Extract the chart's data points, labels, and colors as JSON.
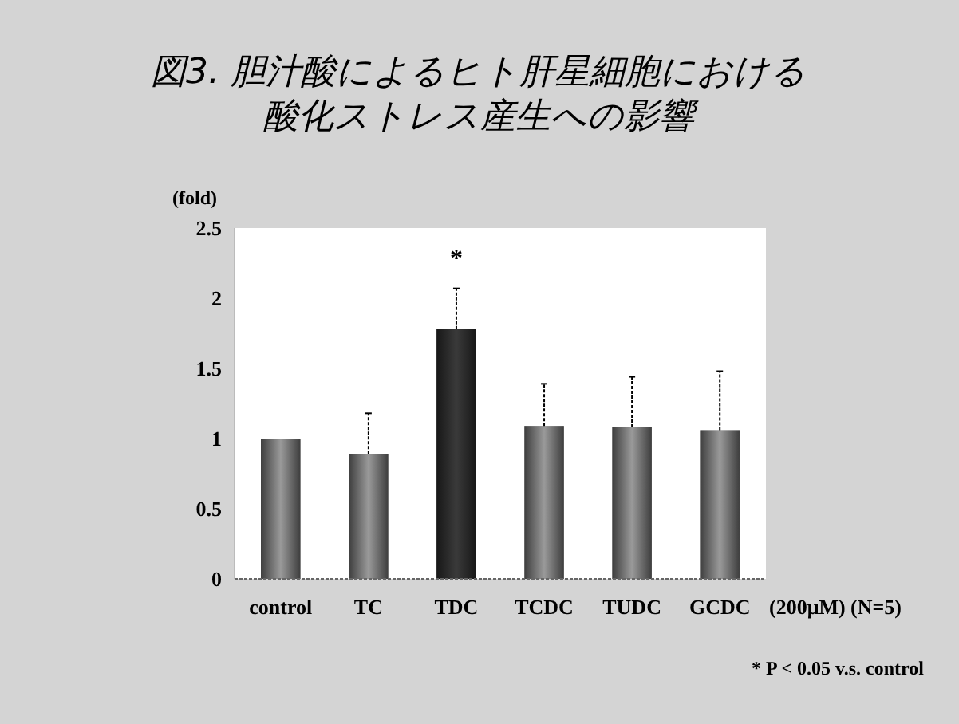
{
  "chart_data": {
    "type": "bar",
    "title": "図3. 胆汁酸によるヒト肝星細胞における",
    "subtitle": "酸化ストレス産生への影響",
    "ylabel": "(fold)",
    "categories": [
      "control",
      "TC",
      "TDC",
      "TCDC",
      "TUDC",
      "GCDC"
    ],
    "values": [
      1.0,
      0.89,
      1.78,
      1.09,
      1.08,
      1.06
    ],
    "errors": [
      null,
      0.29,
      0.29,
      0.3,
      0.36,
      0.42
    ],
    "colors": [
      "#9a9a9a",
      "#9a9a9a",
      "#3a3a3a",
      "#9a9a9a",
      "#9a9a9a",
      "#9a9a9a"
    ],
    "ylim": [
      0,
      2.5
    ],
    "yticks": [
      0,
      0.5,
      1,
      1.5,
      2,
      2.5
    ],
    "grid": false,
    "annotations": [
      "*",
      "(200μM) (N=5)",
      "* P < 0.05 v.s. control"
    ]
  }
}
